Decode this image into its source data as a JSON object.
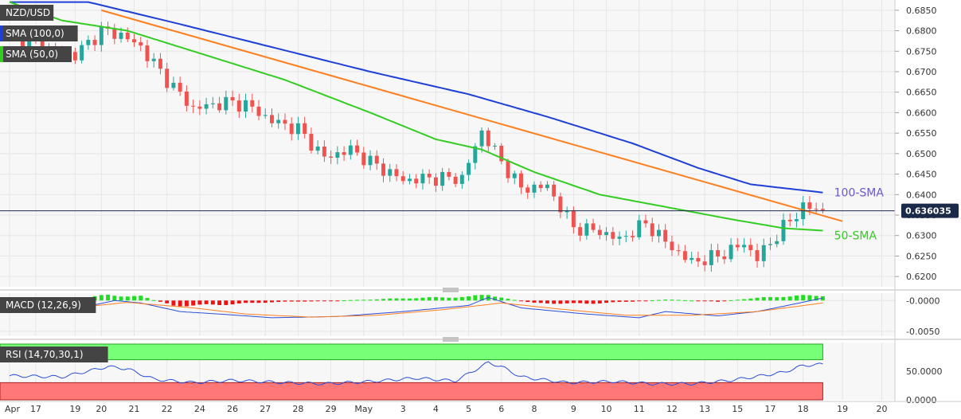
{
  "chart_data": [
    {
      "type": "candlestick",
      "panel": "price",
      "symbol": "NZD/USD",
      "indicators": [
        {
          "name": "SMA (100,0)",
          "color": "#1f3fd6",
          "label": "100-SMA"
        },
        {
          "name": "SMA (50,0)",
          "color": "#33cc22",
          "label": "50-SMA"
        }
      ],
      "trendline_color": "#ff7f1f",
      "current_price": "0.636035",
      "y_ticks": [
        "0.6850",
        "0.6800",
        "0.6750",
        "0.6700",
        "0.6650",
        "0.6600",
        "0.6550",
        "0.6500",
        "0.6450",
        "0.6400",
        "0.6350",
        "0.6300",
        "0.6250",
        "0.6200"
      ],
      "ylim": [
        0.6175,
        0.6875
      ],
      "up_color": "#26a69a",
      "down_color": "#ef5350",
      "ohlc_anchors": [
        [
          0,
          0.679
        ],
        [
          5,
          0.676
        ],
        [
          10,
          0.674
        ],
        [
          14,
          0.68
        ],
        [
          17,
          0.679
        ],
        [
          20,
          0.676
        ],
        [
          24,
          0.668
        ],
        [
          28,
          0.661
        ],
        [
          33,
          0.6625
        ],
        [
          36,
          0.662
        ],
        [
          40,
          0.658
        ],
        [
          44,
          0.656
        ],
        [
          48,
          0.649
        ],
        [
          52,
          0.651
        ],
        [
          55,
          0.648
        ],
        [
          60,
          0.6435
        ],
        [
          64,
          0.644
        ],
        [
          69,
          0.644
        ],
        [
          72,
          0.6555
        ],
        [
          75,
          0.648
        ],
        [
          78,
          0.6415
        ],
        [
          82,
          0.642
        ],
        [
          86,
          0.632
        ],
        [
          90,
          0.631
        ],
        [
          93,
          0.629
        ],
        [
          97,
          0.633
        ],
        [
          101,
          0.627
        ],
        [
          104,
          0.6235
        ],
        [
          108,
          0.625
        ],
        [
          112,
          0.628
        ],
        [
          114,
          0.6245
        ],
        [
          118,
          0.632
        ],
        [
          121,
          0.637
        ],
        [
          124,
          0.6362
        ]
      ],
      "sma100_anchors": [
        [
          0,
          0.687
        ],
        [
          12,
          0.687
        ],
        [
          25,
          0.682
        ],
        [
          40,
          0.676
        ],
        [
          55,
          0.67
        ],
        [
          70,
          0.6645
        ],
        [
          82,
          0.659
        ],
        [
          95,
          0.6525
        ],
        [
          105,
          0.6465
        ],
        [
          113,
          0.6425
        ],
        [
          124,
          0.6405
        ]
      ],
      "sma50_anchors": [
        [
          0,
          0.687
        ],
        [
          8,
          0.6825
        ],
        [
          18,
          0.68
        ],
        [
          30,
          0.674
        ],
        [
          42,
          0.668
        ],
        [
          55,
          0.66
        ],
        [
          65,
          0.6535
        ],
        [
          72,
          0.651
        ],
        [
          80,
          0.6455
        ],
        [
          90,
          0.64
        ],
        [
          100,
          0.637
        ],
        [
          110,
          0.634
        ],
        [
          118,
          0.6318
        ],
        [
          124,
          0.6312
        ]
      ],
      "trendline": [
        [
          14,
          0.685
        ],
        [
          127,
          0.6335
        ]
      ]
    },
    {
      "type": "histogram+line",
      "panel": "macd",
      "label": "MACD (12,26,9)",
      "y_ticks": [
        "-0.0000",
        "-0.0050"
      ],
      "ylim": [
        -0.0058,
        0.0012
      ],
      "hist_anchors": [
        [
          0,
          0
        ],
        [
          8,
          0.0002
        ],
        [
          15,
          0.001
        ],
        [
          20,
          0.0008
        ],
        [
          25,
          -0.001
        ],
        [
          32,
          -0.0008
        ],
        [
          40,
          -0.0003
        ],
        [
          48,
          -0.0001
        ],
        [
          55,
          0.0002
        ],
        [
          62,
          0.0005
        ],
        [
          70,
          0.0007
        ],
        [
          73,
          0.0012
        ],
        [
          76,
          0.0003
        ],
        [
          80,
          -0.0005
        ],
        [
          88,
          -0.0006
        ],
        [
          95,
          -0.0002
        ],
        [
          100,
          0.0002
        ],
        [
          108,
          -0.0002
        ],
        [
          112,
          0.0003
        ],
        [
          118,
          0.0008
        ],
        [
          124,
          0.001
        ]
      ],
      "macd_anchors": [
        [
          0,
          -0.0012
        ],
        [
          6,
          -0.0015
        ],
        [
          10,
          -0.0014
        ],
        [
          16,
          0.0
        ],
        [
          20,
          -0.0004
        ],
        [
          26,
          -0.0018
        ],
        [
          32,
          -0.0022
        ],
        [
          40,
          -0.0028
        ],
        [
          50,
          -0.0026
        ],
        [
          60,
          -0.0018
        ],
        [
          70,
          -0.0008
        ],
        [
          73,
          0.0005
        ],
        [
          78,
          -0.0012
        ],
        [
          88,
          -0.0022
        ],
        [
          96,
          -0.0028
        ],
        [
          100,
          -0.0018
        ],
        [
          108,
          -0.0025
        ],
        [
          114,
          -0.0018
        ],
        [
          120,
          -0.0005
        ],
        [
          124,
          0.0004
        ]
      ],
      "signal_anchors": [
        [
          0,
          -0.0013
        ],
        [
          8,
          -0.0014
        ],
        [
          18,
          -0.0003
        ],
        [
          28,
          -0.0012
        ],
        [
          36,
          -0.0022
        ],
        [
          46,
          -0.0027
        ],
        [
          56,
          -0.0024
        ],
        [
          66,
          -0.0015
        ],
        [
          75,
          -0.0004
        ],
        [
          84,
          -0.0014
        ],
        [
          94,
          -0.0024
        ],
        [
          104,
          -0.0024
        ],
        [
          114,
          -0.0018
        ],
        [
          124,
          -0.0004
        ]
      ],
      "macd_color": "#2a4fd6",
      "signal_color": "#ff7f1f"
    },
    {
      "type": "line",
      "panel": "rsi",
      "label": "RSI (14,70,30,1)",
      "y_ticks": [
        "50.0000",
        "0.0000"
      ],
      "ylim": [
        0,
        100
      ],
      "overbought": 70,
      "oversold": 30,
      "rsi_anchors": [
        [
          0,
          42
        ],
        [
          8,
          40
        ],
        [
          15,
          58
        ],
        [
          18,
          54
        ],
        [
          22,
          36
        ],
        [
          28,
          30
        ],
        [
          34,
          34
        ],
        [
          42,
          30
        ],
        [
          48,
          28
        ],
        [
          55,
          32
        ],
        [
          62,
          38
        ],
        [
          68,
          33
        ],
        [
          73,
          65
        ],
        [
          75,
          58
        ],
        [
          78,
          40
        ],
        [
          85,
          30
        ],
        [
          92,
          32
        ],
        [
          98,
          28
        ],
        [
          104,
          28
        ],
        [
          110,
          34
        ],
        [
          118,
          48
        ],
        [
          121,
          60
        ],
        [
          124,
          62
        ]
      ],
      "rsi_color": "#2a4fd6",
      "overbought_color": "#77ff77",
      "oversold_color": "#ff7777"
    }
  ],
  "x_axis": {
    "labels": [
      {
        "i": 0,
        "text": "Apr"
      },
      {
        "i": 4,
        "text": "17"
      },
      {
        "i": 10,
        "text": "19"
      },
      {
        "i": 14,
        "text": "20"
      },
      {
        "i": 19,
        "text": "21"
      },
      {
        "i": 24,
        "text": "22"
      },
      {
        "i": 29,
        "text": "24"
      },
      {
        "i": 34,
        "text": "26"
      },
      {
        "i": 39,
        "text": "27"
      },
      {
        "i": 44,
        "text": "28"
      },
      {
        "i": 49,
        "text": "29"
      },
      {
        "i": 54,
        "text": "May"
      },
      {
        "i": 60,
        "text": "3"
      },
      {
        "i": 65,
        "text": "4"
      },
      {
        "i": 70,
        "text": "5"
      },
      {
        "i": 75,
        "text": "6"
      },
      {
        "i": 80,
        "text": "8"
      },
      {
        "i": 86,
        "text": "9"
      },
      {
        "i": 91,
        "text": "10"
      },
      {
        "i": 96,
        "text": "11"
      },
      {
        "i": 101,
        "text": "12"
      },
      {
        "i": 106,
        "text": "13"
      },
      {
        "i": 111,
        "text": "15"
      },
      {
        "i": 116,
        "text": "17"
      },
      {
        "i": 121,
        "text": "18"
      },
      {
        "i": 127,
        "text": "19"
      },
      {
        "i": 133,
        "text": "20"
      }
    ],
    "n_candles": 125,
    "x_extent": 135
  },
  "colors": {
    "grid": "#e6e6e6",
    "panel_bg": "#f7f7f7",
    "axis_border": "#cccccc",
    "label_bg": "#444444",
    "price_tag_bg": "#1c2a4a"
  }
}
